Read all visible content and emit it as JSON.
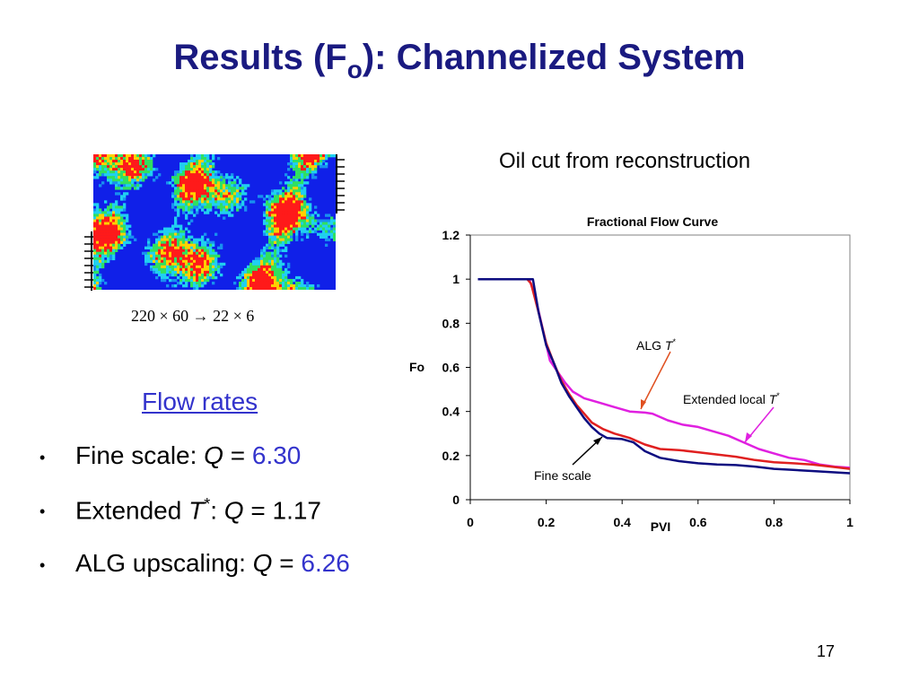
{
  "slide": {
    "title_main": "Results (F",
    "title_sub": "o",
    "title_rest": "): Channelized System",
    "page_number": "17"
  },
  "left": {
    "caption": "220 × 60 → 22 × 6",
    "flow_heading": "Flow rates",
    "bullets": [
      {
        "label": "Fine scale: ",
        "var": "Q",
        "eq": " = ",
        "value": "6.30",
        "value_color": "#3333cc"
      },
      {
        "label": "Extended ",
        "t": "T",
        "star": "*",
        "colon": ": ",
        "var": "Q",
        "eq": " = ",
        "value": "1.17",
        "value_color": "#000000"
      },
      {
        "label": "ALG upscaling: ",
        "var": "Q",
        "eq": " = ",
        "value": "6.26",
        "value_color": "#3333cc"
      }
    ]
  },
  "right": {
    "heading": "Oil cut from reconstruction"
  },
  "chart_data": {
    "type": "line",
    "title": "Fractional Flow Curve",
    "xlabel": "PVI",
    "ylabel": "Fo",
    "xlim": [
      0,
      1
    ],
    "ylim": [
      0,
      1.2
    ],
    "xticks": [
      "0",
      "0.2",
      "0.4",
      "0.6",
      "0.8",
      "1"
    ],
    "yticks": [
      "0",
      "0.2",
      "0.4",
      "0.6",
      "0.8",
      "1",
      "1.2"
    ],
    "grid": false,
    "annotations": [
      {
        "text": "ALG ",
        "italic": "T",
        "sup": "*",
        "series": "ALG"
      },
      {
        "text": "Extended local ",
        "italic": "T",
        "sup": "*",
        "series": "Extended local"
      },
      {
        "text": "Fine scale",
        "series": "Fine scale"
      }
    ],
    "series": [
      {
        "name": "Fine scale",
        "color": "#0d0d80",
        "x": [
          0.02,
          0.1,
          0.15,
          0.165,
          0.18,
          0.2,
          0.22,
          0.24,
          0.26,
          0.28,
          0.3,
          0.32,
          0.34,
          0.36,
          0.4,
          0.43,
          0.46,
          0.5,
          0.55,
          0.6,
          0.65,
          0.7,
          0.75,
          0.8,
          0.85,
          0.9,
          0.95,
          1.0
        ],
        "y": [
          1.0,
          1.0,
          1.0,
          1.0,
          0.85,
          0.7,
          0.62,
          0.53,
          0.47,
          0.42,
          0.37,
          0.33,
          0.3,
          0.28,
          0.275,
          0.26,
          0.22,
          0.19,
          0.175,
          0.165,
          0.16,
          0.157,
          0.15,
          0.14,
          0.135,
          0.13,
          0.125,
          0.12
        ]
      },
      {
        "name": "ALG",
        "color": "#e02020",
        "x": [
          0.02,
          0.1,
          0.15,
          0.16,
          0.18,
          0.2,
          0.22,
          0.24,
          0.26,
          0.28,
          0.3,
          0.32,
          0.35,
          0.38,
          0.42,
          0.46,
          0.5,
          0.55,
          0.6,
          0.65,
          0.7,
          0.75,
          0.8,
          0.85,
          0.9,
          0.95,
          1.0
        ],
        "y": [
          1.0,
          1.0,
          1.0,
          0.98,
          0.85,
          0.71,
          0.62,
          0.54,
          0.48,
          0.43,
          0.39,
          0.35,
          0.32,
          0.3,
          0.28,
          0.25,
          0.23,
          0.225,
          0.215,
          0.205,
          0.195,
          0.18,
          0.17,
          0.165,
          0.16,
          0.15,
          0.14
        ]
      },
      {
        "name": "Extended local",
        "color": "#e020e0",
        "x": [
          0.02,
          0.1,
          0.155,
          0.17,
          0.19,
          0.21,
          0.23,
          0.25,
          0.27,
          0.3,
          0.34,
          0.38,
          0.42,
          0.46,
          0.48,
          0.52,
          0.56,
          0.6,
          0.64,
          0.68,
          0.72,
          0.76,
          0.8,
          0.84,
          0.88,
          0.92,
          0.96,
          1.0
        ],
        "y": [
          1.0,
          1.0,
          1.0,
          0.93,
          0.78,
          0.63,
          0.58,
          0.53,
          0.49,
          0.46,
          0.44,
          0.42,
          0.4,
          0.395,
          0.39,
          0.36,
          0.34,
          0.33,
          0.31,
          0.29,
          0.26,
          0.23,
          0.21,
          0.19,
          0.18,
          0.16,
          0.15,
          0.145
        ]
      }
    ]
  }
}
